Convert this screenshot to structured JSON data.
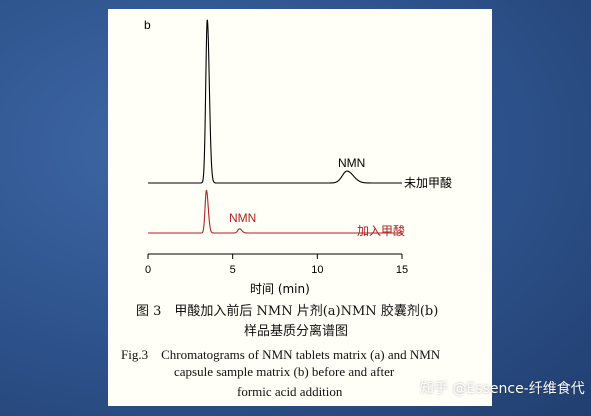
{
  "figure": {
    "panel_label": "b",
    "caption_cn_line1": "图 3　甲酸加入前后 NMN 片剂(a)NMN 胶囊剂(b)",
    "caption_cn_line2": "样品基质分离谱图",
    "caption_en_line1": "Fig.3　Chromatograms of NMN tablets matrix (a) and NMN",
    "caption_en_line2": "capsule sample matrix (b) before and after",
    "caption_en_line3": "formic acid addition"
  },
  "watermark": "知乎 @Essence-纤维食代",
  "colors": {
    "trace_without_acid": "#000000",
    "trace_with_acid": "#b22222",
    "background": "#2c4f86",
    "paper": "#fffff7"
  },
  "chart_data": {
    "type": "line",
    "title": "",
    "xlabel": "时间 (min)",
    "ylabel": "",
    "xlim": [
      0,
      15
    ],
    "x_ticks": [
      0,
      5,
      10,
      15
    ],
    "grid": false,
    "series": [
      {
        "name": "未加甲酸",
        "color": "#000000",
        "baseline_level": 1.0,
        "peaks": [
          {
            "x": 3.5,
            "height": 9.6,
            "width": 0.09
          },
          {
            "x": 11.75,
            "height": 0.7,
            "width": 0.28
          }
        ],
        "annotations": [
          {
            "x": 11.75,
            "text": "NMN"
          }
        ]
      },
      {
        "name": "加入甲酸",
        "color": "#b22222",
        "baseline_level": 0.0,
        "peaks": [
          {
            "x": 3.45,
            "height": 2.5,
            "width": 0.08
          },
          {
            "x": 5.4,
            "height": 0.25,
            "width": 0.1
          }
        ],
        "annotations": [
          {
            "x": 5.4,
            "text": "NMN"
          }
        ]
      }
    ]
  }
}
